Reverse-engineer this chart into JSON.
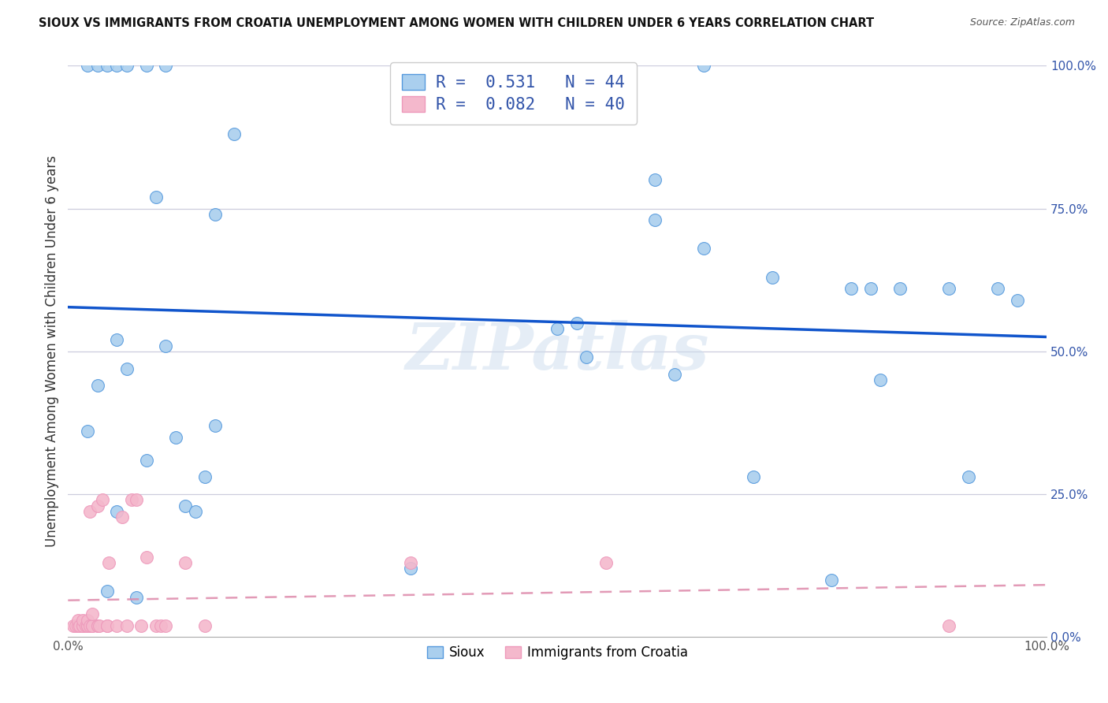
{
  "title": "SIOUX VS IMMIGRANTS FROM CROATIA UNEMPLOYMENT AMONG WOMEN WITH CHILDREN UNDER 6 YEARS CORRELATION CHART",
  "source": "Source: ZipAtlas.com",
  "ylabel": "Unemployment Among Women with Children Under 6 years",
  "legend_label1": "Sioux",
  "legend_label2": "Immigrants from Croatia",
  "R1": 0.531,
  "N1": 44,
  "R2": 0.082,
  "N2": 40,
  "sioux_x": [
    0.02,
    0.03,
    0.04,
    0.05,
    0.05,
    0.06,
    0.07,
    0.08,
    0.09,
    0.1,
    0.11,
    0.12,
    0.13,
    0.14,
    0.15,
    0.17,
    0.35,
    0.5,
    0.52,
    0.53,
    0.6,
    0.62,
    0.65,
    0.7,
    0.72,
    0.78,
    0.8,
    0.82,
    0.83,
    0.85,
    0.9,
    0.92,
    0.95,
    0.97,
    0.02,
    0.03,
    0.04,
    0.05,
    0.06,
    0.08,
    0.1,
    0.15,
    0.6,
    0.65
  ],
  "sioux_y": [
    0.36,
    0.44,
    0.08,
    0.52,
    0.22,
    0.47,
    0.07,
    0.31,
    0.77,
    0.51,
    0.35,
    0.23,
    0.22,
    0.28,
    0.37,
    0.88,
    0.12,
    0.54,
    0.55,
    0.49,
    0.73,
    0.46,
    0.68,
    0.28,
    0.63,
    0.1,
    0.61,
    0.61,
    0.45,
    0.61,
    0.61,
    0.28,
    0.61,
    0.59,
    1.0,
    1.0,
    1.0,
    1.0,
    1.0,
    1.0,
    1.0,
    0.74,
    0.8,
    1.0
  ],
  "croatia_x": [
    0.005,
    0.008,
    0.01,
    0.01,
    0.012,
    0.015,
    0.015,
    0.015,
    0.018,
    0.02,
    0.02,
    0.02,
    0.022,
    0.022,
    0.025,
    0.025,
    0.025,
    0.03,
    0.03,
    0.03,
    0.032,
    0.035,
    0.04,
    0.04,
    0.042,
    0.05,
    0.055,
    0.06,
    0.065,
    0.07,
    0.075,
    0.08,
    0.09,
    0.095,
    0.1,
    0.12,
    0.14,
    0.35,
    0.55,
    0.9
  ],
  "croatia_y": [
    0.02,
    0.02,
    0.02,
    0.03,
    0.02,
    0.02,
    0.02,
    0.03,
    0.02,
    0.02,
    0.02,
    0.03,
    0.02,
    0.22,
    0.02,
    0.02,
    0.04,
    0.02,
    0.02,
    0.23,
    0.02,
    0.24,
    0.02,
    0.02,
    0.13,
    0.02,
    0.21,
    0.02,
    0.24,
    0.24,
    0.02,
    0.14,
    0.02,
    0.02,
    0.02,
    0.13,
    0.02,
    0.13,
    0.13,
    0.02
  ],
  "sioux_color": "#aacfee",
  "croatia_color": "#f4b8cc",
  "sioux_edge_color": "#5599dd",
  "croatia_edge_color": "#ee99bb",
  "sioux_line_color": "#1155cc",
  "croatia_line_color": "#dd88aa",
  "bg_color": "#ffffff",
  "grid_color": "#ccccdd",
  "title_color": "#111111",
  "tick_label_color": "#3355aa",
  "watermark": "ZIPatlas",
  "ylim": [
    0.0,
    1.0
  ],
  "xlim": [
    0.0,
    1.0
  ]
}
